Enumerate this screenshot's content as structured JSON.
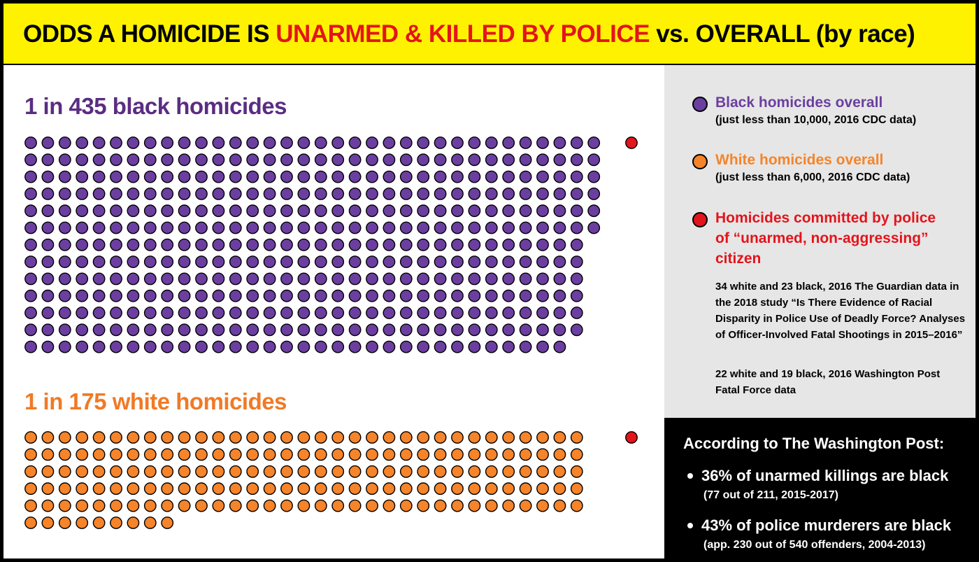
{
  "header": {
    "title_part1": "ODDS A HOMICIDE IS ",
    "title_highlight": "UNARMED & KILLED BY POLICE",
    "title_part2": " vs. OVERALL (by race)"
  },
  "colors": {
    "black": "#6b3fa0",
    "white": "#f5842a",
    "police": "#e3141c",
    "header_bg": "#fff200",
    "legend_bg": "#e6e6e6",
    "black_title": "#5a2d82",
    "white_title": "#f07a26",
    "police_text": "#e3141c"
  },
  "chart_data": [
    {
      "type": "waffle",
      "title": "1 in 435 black homicides",
      "series": [
        {
          "name": "Black homicides overall",
          "count": 434,
          "color": "#6b3fa0"
        },
        {
          "name": "Homicides committed by police of “unarmed, non-aggressing” citizen",
          "count": 1,
          "color": "#e3141c"
        }
      ]
    },
    {
      "type": "waffle",
      "title": "1 in 175 white homicides",
      "series": [
        {
          "name": "White homicides overall",
          "count": 174,
          "color": "#f5842a"
        },
        {
          "name": "Homicides committed by police of “unarmed, non-aggressing” citizen",
          "count": 1,
          "color": "#e3141c"
        }
      ]
    }
  ],
  "legend": {
    "items": [
      {
        "label": "Black homicides overall",
        "sub": "(just less than 10,000, 2016 CDC data)"
      },
      {
        "label": "White homicides overall",
        "sub": "(just less than 6,000, 2016 CDC data)"
      },
      {
        "label_lines": [
          "Homicides committed by police",
          "of “unarmed, non-aggressing”",
          "citizen"
        ]
      }
    ],
    "source_guardian": "34 white and 23 black, 2016 The Guardian data in the 2018 study “Is There Evidence of Racial Disparity in Police Use of Deadly Force? Analyses of Officer-Involved Fatal Shootings in 2015–2016”",
    "source_wapo": "22 white and 19 black, 2016 Washington Post Fatal Force data"
  },
  "wapo": {
    "heading": "According to The Washington Post:",
    "bullets": [
      {
        "main": "36% of unarmed killings are black",
        "sub": "(77 out of 211, 2015-2017)"
      },
      {
        "main": "43% of police murderers are black",
        "sub": "(app. 230 out of 540 offenders, 2004-2013)"
      }
    ]
  }
}
